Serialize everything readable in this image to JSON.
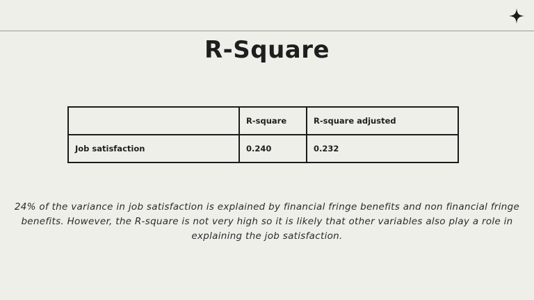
{
  "decor": {
    "icon": "four-point-star-icon",
    "line_color": "#9a9a96"
  },
  "slide": {
    "title": "R-Square",
    "table": {
      "headers": [
        "",
        "R-square",
        "R-square adjusted"
      ],
      "rows": [
        [
          "Job satisfaction",
          "0.240",
          "0.232"
        ]
      ]
    },
    "note": "24% of the variance in job satisfaction is explained by financial fringe benefits and non financial fringe benefits. However, the R-square is not very high so it is likely that other variables also play a role in explaining the job satisfaction."
  }
}
